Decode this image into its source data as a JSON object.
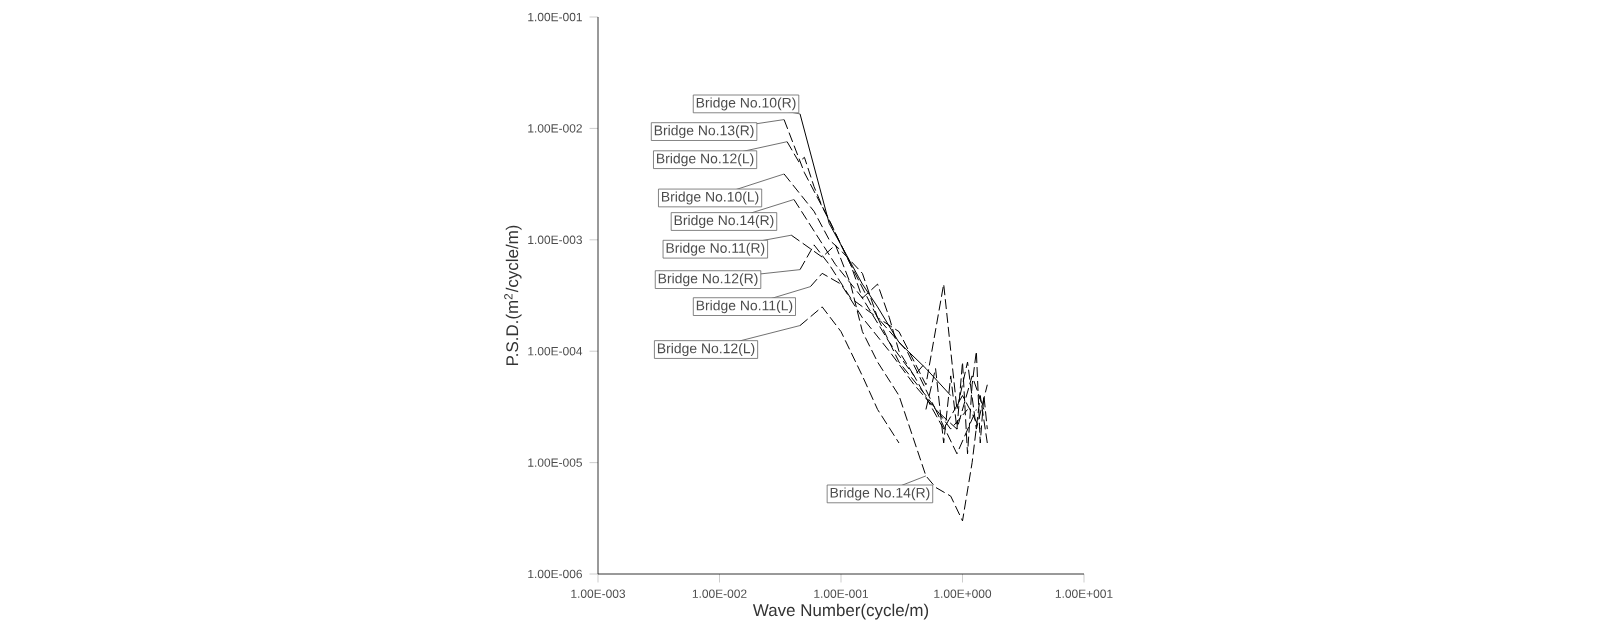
{
  "chart_data": {
    "type": "line",
    "xlabel": "Wave Number(cycle/m)",
    "ylabel": "P.S.D.(m$^{2}$/cycle/m)",
    "log": "xy",
    "marker": "none",
    "grid": false,
    "xlim": [
      0.001,
      10
    ],
    "ylim": [
      1e-06,
      0.1
    ],
    "xticks": [
      {
        "value": 0.001,
        "label": "1.00E-003"
      },
      {
        "value": 0.01,
        "label": "1.00E-002"
      },
      {
        "value": 0.1,
        "label": "1.00E-001"
      },
      {
        "value": 1,
        "label": "1.00E+000"
      },
      {
        "value": 10,
        "label": "1.00E+001"
      }
    ],
    "yticks": [
      {
        "value": 1e-06,
        "label": "1.00E-006"
      },
      {
        "value": 1e-05,
        "label": "1.00E-005"
      },
      {
        "value": 0.0001,
        "label": "1.00E-004"
      },
      {
        "value": 0.001,
        "label": "1.00E-003"
      },
      {
        "value": 0.01,
        "label": "1.00E-002"
      },
      {
        "value": 0.1,
        "label": "1.00E-001"
      }
    ],
    "series": [
      {
        "color": "#000000",
        "line_style": "solid",
        "x": [
          0.046,
          0.08,
          0.1,
          0.15,
          0.2,
          0.3,
          0.5,
          0.8
        ],
        "values": [
          0.0135,
          0.0014,
          0.0009,
          0.0004,
          0.00025,
          0.00012,
          7e-05,
          4e-05
        ]
      },
      {
        "color": "#000000",
        "line_style": "dashed",
        "x": [
          0.034,
          0.05,
          0.08,
          0.12,
          0.2,
          0.35,
          0.6,
          0.9,
          1.2,
          1.5
        ],
        "values": [
          0.012,
          0.004,
          0.0015,
          0.0006,
          0.0002,
          0.0001,
          3e-05,
          2e-05,
          6e-05,
          3e-05
        ]
      },
      {
        "color": "#000000",
        "line_style": "dashed",
        "x": [
          0.041,
          0.06,
          0.09,
          0.15,
          0.25,
          0.4,
          0.7,
          1.0,
          1.4
        ],
        "values": [
          0.0023,
          0.0012,
          0.0006,
          0.0003,
          0.00012,
          6e-05,
          2e-05,
          4e-05,
          2e-05
        ]
      },
      {
        "color": "#000000",
        "line_style": "dashed",
        "x": [
          0.046,
          0.06,
          0.08,
          0.12,
          0.2,
          0.3,
          0.5,
          0.8,
          1.1
        ],
        "values": [
          0.00054,
          0.0009,
          0.0006,
          0.0003,
          0.0002,
          8e-05,
          4e-05,
          2e-05,
          3e-05
        ]
      },
      {
        "color": "#000000",
        "line_style": "dashed",
        "x": [
          0.056,
          0.07,
          0.1,
          0.15,
          0.25,
          0.4,
          0.6,
          0.9,
          1.3
        ],
        "values": [
          0.00038,
          0.0005,
          0.0004,
          0.0002,
          0.0001,
          5e-05,
          3e-05,
          1.2e-05,
          3e-05
        ]
      },
      {
        "color": "#000000",
        "line_style": "dashed",
        "x": [
          0.046,
          0.07,
          0.1,
          0.15,
          0.2,
          0.3
        ],
        "values": [
          0.00017,
          0.00025,
          0.00015,
          6e-05,
          3e-05,
          1.5e-05
        ]
      },
      {
        "color": "#000000",
        "line_style": "dashed",
        "x": [
          0.036,
          0.045,
          0.05,
          0.06,
          0.07,
          0.08,
          0.1,
          0.12,
          0.15,
          0.2,
          0.25,
          0.3,
          0.4,
          0.5
        ],
        "values": [
          0.0076,
          0.005,
          0.0055,
          0.003,
          0.002,
          0.0015,
          0.0009,
          0.0006,
          0.0003,
          0.0004,
          0.0002,
          0.0001,
          6e-05,
          8e-05
        ]
      },
      {
        "color": "#000000",
        "line_style": "dashed",
        "x": [
          0.034,
          0.06,
          0.08,
          0.1,
          0.15,
          0.2,
          0.3,
          0.5,
          0.7,
          0.9,
          1.1,
          1.3,
          1.6
        ],
        "values": [
          0.0039,
          0.0018,
          0.001,
          0.0008,
          0.0005,
          0.0002,
          0.00015,
          5e-05,
          0.0004,
          3e-05,
          8e-05,
          2e-05,
          5e-05
        ]
      },
      {
        "color": "#000000",
        "line_style": "dashed",
        "x": [
          0.039,
          0.07,
          0.09,
          0.12,
          0.15,
          0.2,
          0.3,
          0.5,
          0.6,
          0.8,
          1.0,
          1.2,
          1.4,
          1.6
        ],
        "values": [
          0.0011,
          0.0007,
          0.0009,
          0.0004,
          0.00015,
          8e-05,
          4e-05,
          7.6e-06,
          6e-06,
          5e-06,
          3e-06,
          1e-05,
          4e-05,
          1.5e-05
        ]
      },
      {
        "color": "#000000",
        "line_style": "dashed",
        "x": [
          0.5,
          0.6,
          0.7,
          0.8,
          0.9,
          1.0,
          1.1,
          1.2,
          1.3,
          1.4,
          1.5,
          1.6
        ],
        "values": [
          3e-05,
          7e-05,
          1.5e-05,
          6e-05,
          2e-05,
          8e-05,
          1.2e-05,
          5e-05,
          0.0001,
          1.5e-05,
          4e-05,
          2e-05
        ]
      }
    ],
    "annotations": [
      {
        "text": "Bridge No.10(R)",
        "x": 0.046,
        "y": 0.0135
      },
      {
        "text": "Bridge No.13(R)",
        "x": 0.034,
        "y": 0.012
      },
      {
        "text": "Bridge No.12(L)",
        "x": 0.036,
        "y": 0.0076
      },
      {
        "text": "Bridge No.10(L)",
        "x": 0.034,
        "y": 0.0039
      },
      {
        "text": "Bridge No.14(R)",
        "x": 0.041,
        "y": 0.0023
      },
      {
        "text": "Bridge No.11(R)",
        "x": 0.039,
        "y": 0.0011
      },
      {
        "text": "Bridge No.12(R)",
        "x": 0.046,
        "y": 0.00054
      },
      {
        "text": "Bridge No.11(L)",
        "x": 0.056,
        "y": 0.00038
      },
      {
        "text": "Bridge No.12(L)",
        "x": 0.046,
        "y": 0.00017
      },
      {
        "text": "Bridge No.14(R)",
        "x": 0.5,
        "y": 7.6e-06
      }
    ]
  }
}
